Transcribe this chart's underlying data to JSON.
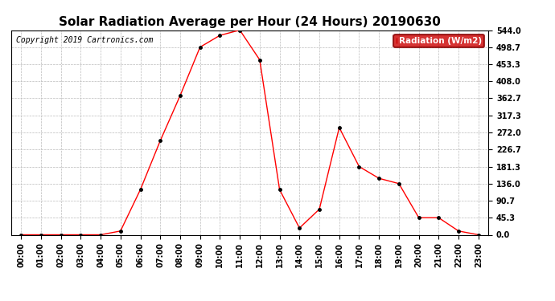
{
  "title": "Solar Radiation Average per Hour (24 Hours) 20190630",
  "copyright_text": "Copyright 2019 Cartronics.com",
  "legend_label": "Radiation (W/m2)",
  "hours": [
    0,
    1,
    2,
    3,
    4,
    5,
    6,
    7,
    8,
    9,
    10,
    11,
    12,
    13,
    14,
    15,
    16,
    17,
    18,
    19,
    20,
    21,
    22,
    23
  ],
  "hour_labels": [
    "00:00",
    "01:00",
    "02:00",
    "03:00",
    "04:00",
    "05:00",
    "06:00",
    "07:00",
    "08:00",
    "09:00",
    "10:00",
    "11:00",
    "12:00",
    "13:00",
    "14:00",
    "15:00",
    "16:00",
    "17:00",
    "18:00",
    "19:00",
    "20:00",
    "21:00",
    "22:00",
    "23:00"
  ],
  "values": [
    0.0,
    0.0,
    0.0,
    0.0,
    0.0,
    10.0,
    120.0,
    250.0,
    370.0,
    498.7,
    530.0,
    544.0,
    465.0,
    120.0,
    18.0,
    68.0,
    285.0,
    181.3,
    150.0,
    136.0,
    45.3,
    45.3,
    10.0,
    0.0
  ],
  "line_color": "#ff0000",
  "marker_color": "#000000",
  "background_color": "#ffffff",
  "grid_color": "#bbbbbb",
  "ylim": [
    0.0,
    544.0
  ],
  "yticks": [
    0.0,
    45.3,
    90.7,
    136.0,
    181.3,
    226.7,
    272.0,
    317.3,
    362.7,
    408.0,
    453.3,
    498.7,
    544.0
  ],
  "title_fontsize": 11,
  "copyright_fontsize": 7,
  "tick_fontsize": 7,
  "legend_bg": "#cc0000",
  "legend_text_color": "#ffffff",
  "fig_width": 6.9,
  "fig_height": 3.75,
  "dpi": 100
}
